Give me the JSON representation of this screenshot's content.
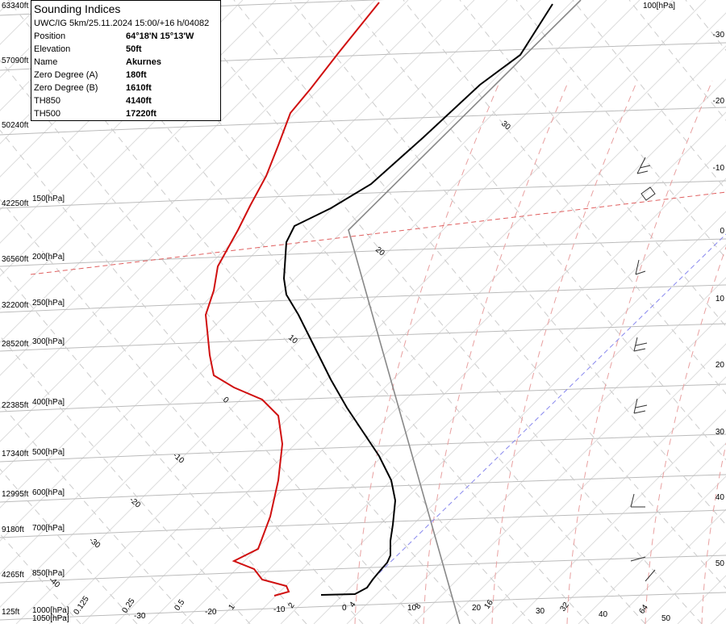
{
  "info_box": {
    "title": "Sounding Indices",
    "subtitle": "UWC/IG 5km/25.11.2024 15:00/+16 h/04082",
    "rows": [
      [
        "Position",
        "64°18'N 15°13'W"
      ],
      [
        "Elevation",
        "50ft"
      ],
      [
        "Name",
        "Akurnes"
      ],
      [
        "Zero Degree (A)",
        "180ft"
      ],
      [
        "Zero Degree (B)",
        "1610ft"
      ],
      [
        "TH850",
        "4140ft"
      ],
      [
        "TH500",
        "17220ft"
      ]
    ]
  },
  "altitude_labels": [
    "63340ft",
    "57090ft",
    "50240ft",
    "42250ft",
    "36560ft",
    "32200ft",
    "28520ft",
    "22385ft",
    "17340ft",
    "12995ft",
    "9180ft",
    "4265ft",
    "125ft"
  ],
  "pressure_labels": [
    "100[hPa]",
    "150[hPa]",
    "200[hPa]",
    "250[hPa]",
    "300[hPa]",
    "400[hPa]",
    "500[hPa]",
    "600[hPa]",
    "700[hPa]",
    "850[hPa]",
    "1000[hPa]",
    "1050[hPa]"
  ],
  "right_temperature_labels": [
    "-30",
    "-20",
    "-10",
    "0",
    "10",
    "20",
    "30",
    "40",
    "50"
  ],
  "bottom_temperature_labels": [
    "-30",
    "-20",
    "-10",
    "0",
    "10",
    "20",
    "30",
    "40",
    "50"
  ],
  "mixing_ratio_labels": [
    "0.125",
    "0.25",
    "0.5",
    "1",
    "2",
    "4",
    "8",
    "16",
    "32",
    "64"
  ],
  "isotherm_labels": [
    "30",
    "20",
    "10",
    "0",
    "-10",
    "-20",
    "-30",
    "-40"
  ]
}
